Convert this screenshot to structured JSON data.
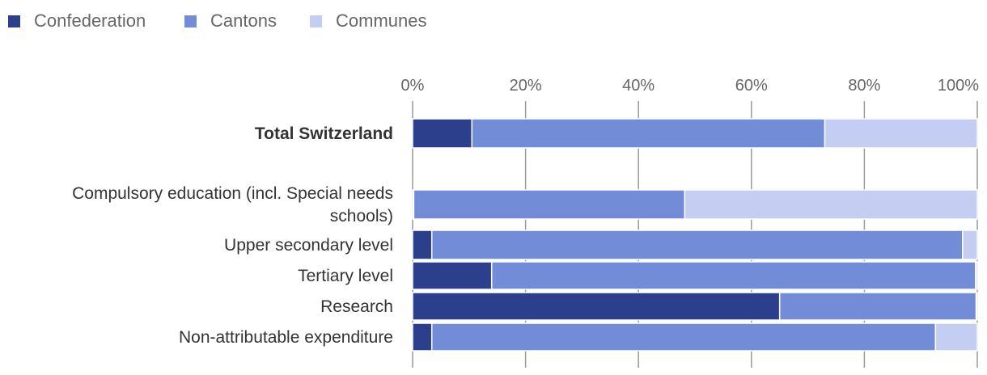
{
  "chart_data": {
    "type": "bar",
    "orientation": "horizontal",
    "stacked": true,
    "title": "",
    "xlabel": "",
    "ylabel": "",
    "xlim": [
      0,
      100
    ],
    "x_ticks": [
      "0%",
      "20%",
      "40%",
      "60%",
      "80%",
      "100%"
    ],
    "grid": true,
    "legend_position": "top-left",
    "categories": [
      {
        "label_lines": [
          "Total Switzerland"
        ],
        "bold": true
      },
      {
        "label_lines": [
          "Compulsory education (incl. Special needs",
          "schools)"
        ],
        "bold": false
      },
      {
        "label_lines": [
          "Upper secondary level"
        ],
        "bold": false
      },
      {
        "label_lines": [
          "Tertiary level"
        ],
        "bold": false
      },
      {
        "label_lines": [
          "Research"
        ],
        "bold": false
      },
      {
        "label_lines": [
          "Non-attributable expenditure"
        ],
        "bold": false
      }
    ],
    "series": [
      {
        "name": "Confederation",
        "color": "#2b3f8c",
        "values": [
          10.5,
          0.2,
          3.4,
          14.0,
          65.0,
          3.4
        ]
      },
      {
        "name": "Cantons",
        "color": "#738cd8",
        "values": [
          62.5,
          48.0,
          94.0,
          85.7,
          34.8,
          89.2
        ]
      },
      {
        "name": "Communes",
        "color": "#c3cef2",
        "values": [
          27.0,
          51.8,
          2.6,
          0.3,
          0.2,
          7.4
        ]
      }
    ]
  }
}
